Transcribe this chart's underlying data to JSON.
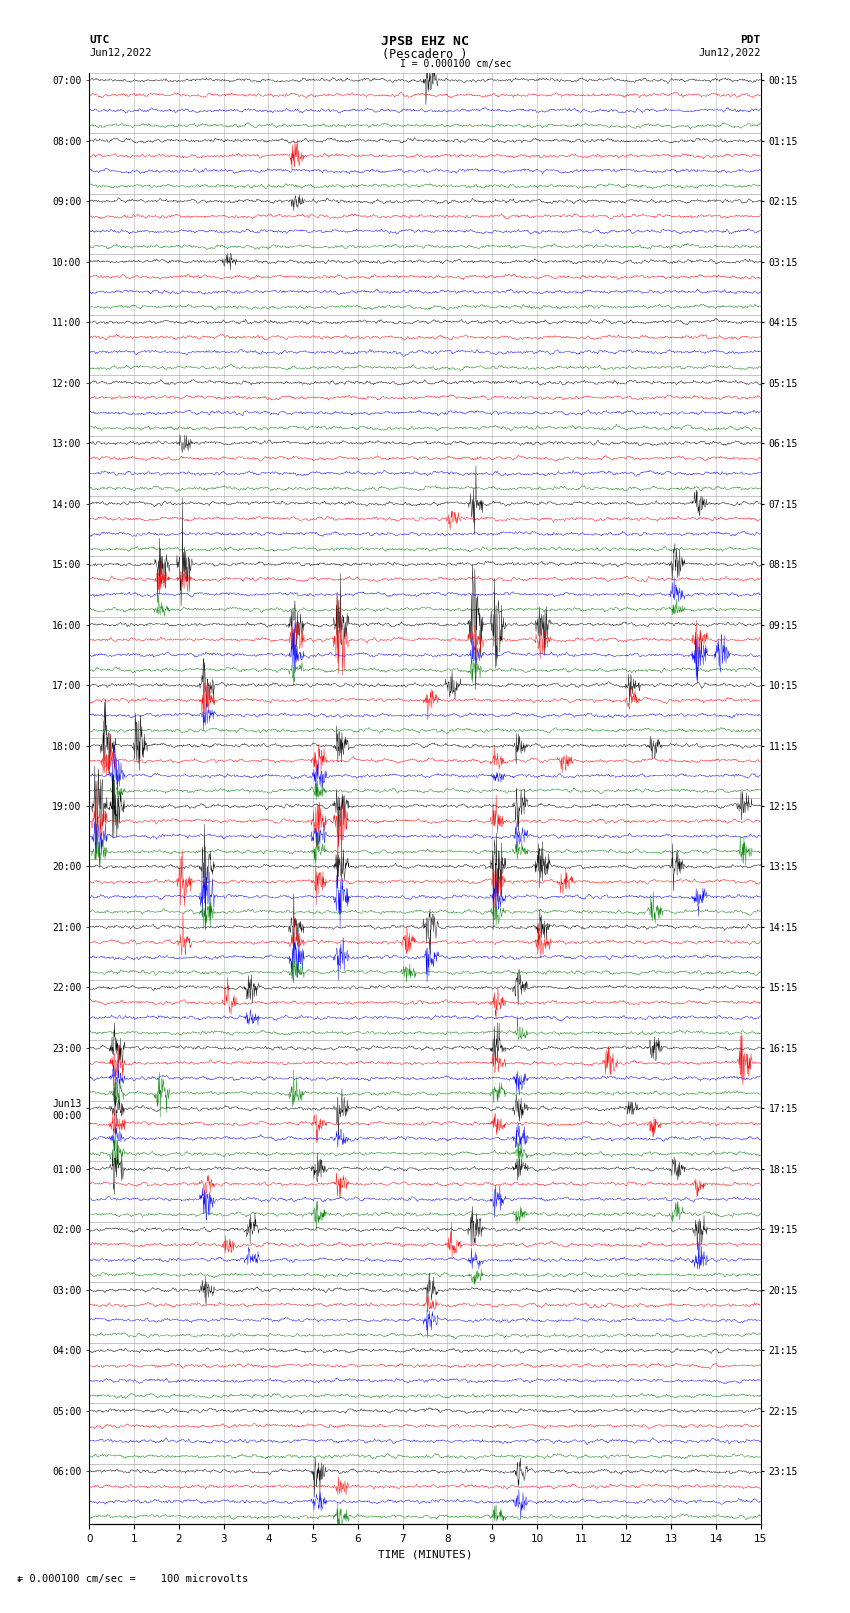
{
  "title_line1": "JPSB EHZ NC",
  "title_line2": "(Pescadero )",
  "scale_text": "I = 0.000100 cm/sec",
  "footer_text": "= 0.000100 cm/sec =    100 microvolts",
  "utc_label": "UTC",
  "utc_date": "Jun12,2022",
  "pdt_label": "PDT",
  "pdt_date": "Jun12,2022",
  "xlabel": "TIME (MINUTES)",
  "left_times": [
    "07:00",
    "08:00",
    "09:00",
    "10:00",
    "11:00",
    "12:00",
    "13:00",
    "14:00",
    "15:00",
    "16:00",
    "17:00",
    "18:00",
    "19:00",
    "20:00",
    "21:00",
    "22:00",
    "23:00",
    "Jun13\n00:00",
    "01:00",
    "02:00",
    "03:00",
    "04:00",
    "05:00",
    "06:00"
  ],
  "right_times": [
    "00:15",
    "01:15",
    "02:15",
    "03:15",
    "04:15",
    "05:15",
    "06:15",
    "07:15",
    "08:15",
    "09:15",
    "10:15",
    "11:15",
    "12:15",
    "13:15",
    "14:15",
    "15:15",
    "16:15",
    "17:15",
    "18:15",
    "19:15",
    "20:15",
    "21:15",
    "22:15",
    "23:15"
  ],
  "n_rows": 24,
  "traces_per_row": 4,
  "colors": [
    "black",
    "red",
    "blue",
    "green"
  ],
  "x_min": 0,
  "x_max": 15,
  "x_ticks": [
    0,
    1,
    2,
    3,
    4,
    5,
    6,
    7,
    8,
    9,
    10,
    11,
    12,
    13,
    14,
    15
  ],
  "background_color": "white",
  "fig_width": 8.5,
  "fig_height": 16.13,
  "dpi": 100
}
